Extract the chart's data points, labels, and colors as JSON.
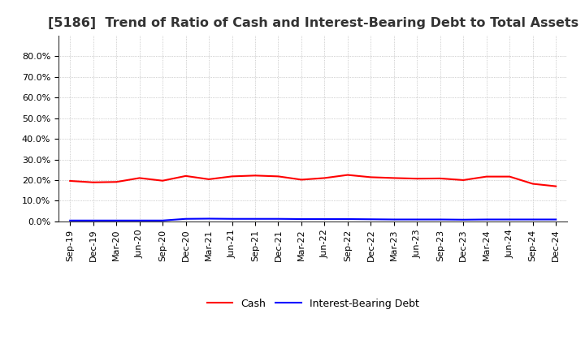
{
  "title": "[5186]  Trend of Ratio of Cash and Interest-Bearing Debt to Total Assets",
  "x_labels": [
    "Sep-19",
    "Dec-19",
    "Mar-20",
    "Jun-20",
    "Sep-20",
    "Dec-20",
    "Mar-21",
    "Jun-21",
    "Sep-21",
    "Dec-21",
    "Mar-22",
    "Jun-22",
    "Sep-22",
    "Dec-22",
    "Mar-23",
    "Jun-23",
    "Sep-23",
    "Dec-23",
    "Mar-24",
    "Jun-24",
    "Sep-24",
    "Dec-24"
  ],
  "cash": [
    0.196,
    0.189,
    0.191,
    0.21,
    0.197,
    0.22,
    0.204,
    0.218,
    0.222,
    0.218,
    0.202,
    0.21,
    0.225,
    0.214,
    0.21,
    0.207,
    0.208,
    0.2,
    0.217,
    0.217,
    0.182,
    0.17
  ],
  "interest_bearing_debt": [
    0.004,
    0.004,
    0.004,
    0.004,
    0.004,
    0.012,
    0.013,
    0.012,
    0.012,
    0.012,
    0.011,
    0.011,
    0.011,
    0.01,
    0.009,
    0.009,
    0.009,
    0.008,
    0.009,
    0.009,
    0.009,
    0.009
  ],
  "cash_color": "#FF0000",
  "debt_color": "#0000FF",
  "ylim": [
    0.0,
    0.9
  ],
  "yticks": [
    0.0,
    0.1,
    0.2,
    0.3,
    0.4,
    0.5,
    0.6,
    0.7,
    0.8
  ],
  "background_color": "#FFFFFF",
  "grid_color": "#AAAAAA",
  "title_fontsize": 11.5,
  "tick_fontsize": 8,
  "legend_labels": [
    "Cash",
    "Interest-Bearing Debt"
  ]
}
